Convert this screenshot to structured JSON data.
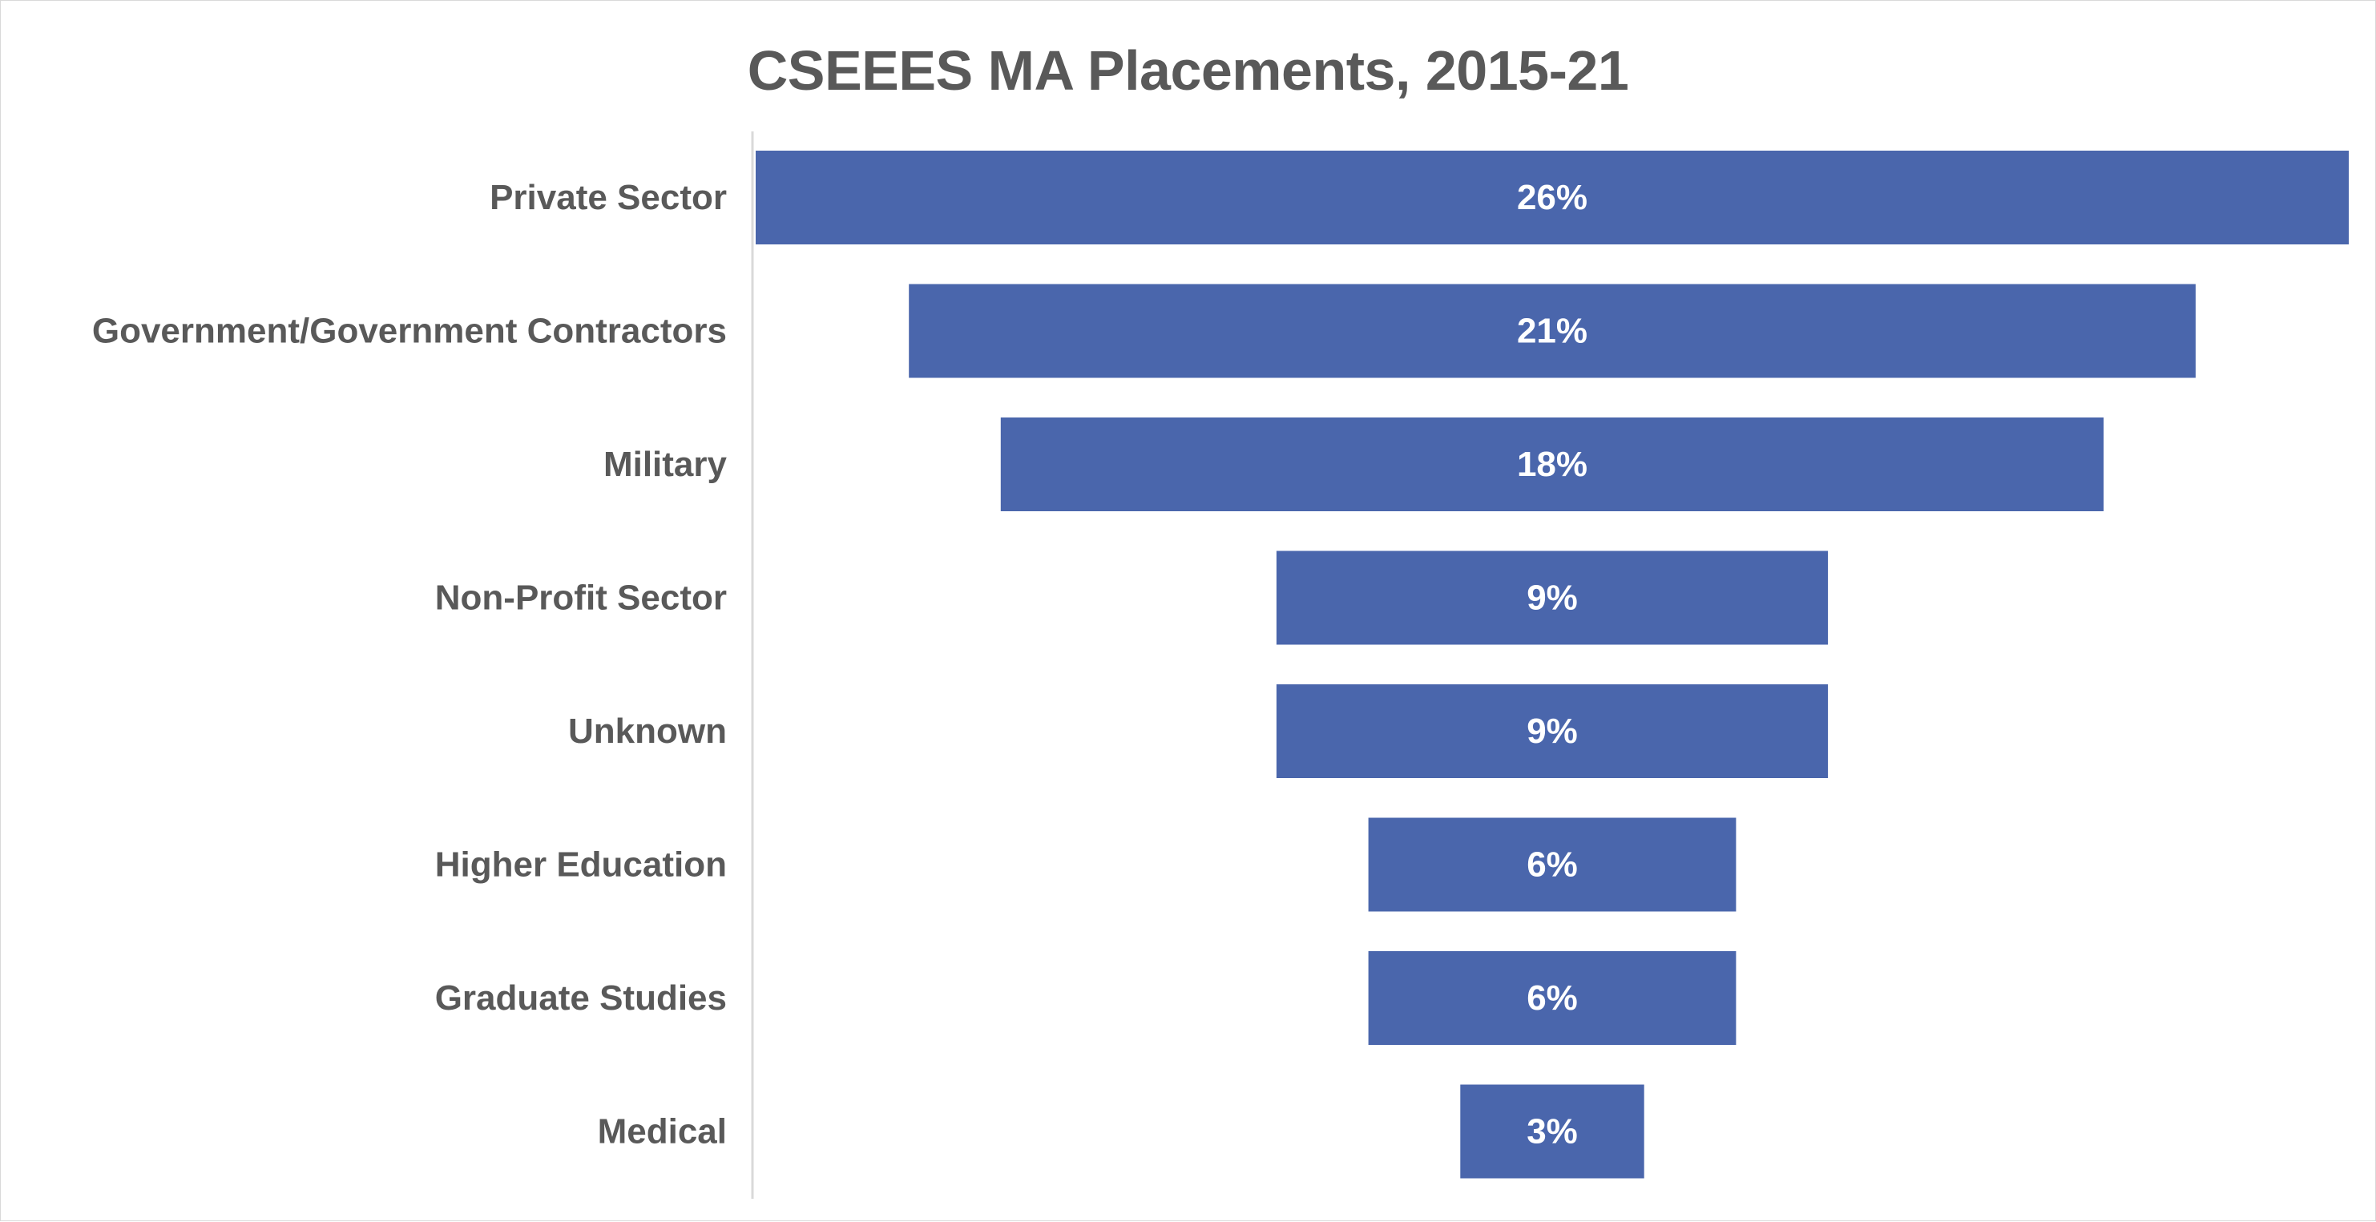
{
  "chart_data": {
    "type": "bar",
    "subtype": "funnel",
    "title": "CSEEES MA Placements, 2015-21",
    "categories": [
      "Private Sector",
      "Government/Government Contractors",
      "Military",
      "Non-Profit Sector",
      "Unknown",
      "Higher Education",
      "Graduate Studies",
      "Medical"
    ],
    "values": [
      26,
      21,
      18,
      9,
      9,
      6,
      6,
      3
    ],
    "value_labels": [
      "26%",
      "21%",
      "18%",
      "9%",
      "9%",
      "6%",
      "6%",
      "3%"
    ],
    "unit": "%",
    "xlabel": "",
    "ylabel": "",
    "legend": "none",
    "grid": false,
    "bar_color": "#4A66AC",
    "label_color": "#595959",
    "value_label_color": "#FFFFFF"
  }
}
